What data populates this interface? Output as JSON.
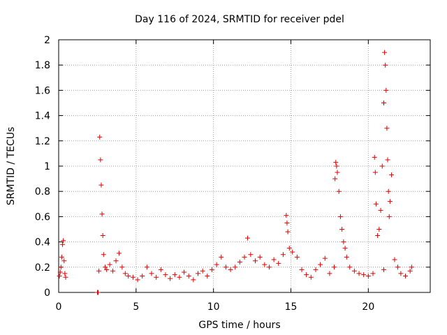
{
  "chart_data": {
    "type": "scatter",
    "title": "Day 116 of 2024, SRMTID for receiver pdel",
    "xlabel": "GPS time / hours",
    "ylabel": "SRMTID / TECUs",
    "xlim": [
      0,
      24
    ],
    "ylim": [
      0,
      2
    ],
    "xticks": [
      0,
      5,
      10,
      15,
      20
    ],
    "xtick_labels": [
      "0",
      "5",
      "10",
      "15",
      "20"
    ],
    "yticks": [
      0,
      0.2,
      0.4,
      0.6,
      0.8,
      1,
      1.2,
      1.4,
      1.6,
      1.8,
      2
    ],
    "ytick_labels": [
      "0",
      "0.2",
      "0.4",
      "0.6",
      "0.8",
      "1",
      "1.2",
      "1.4",
      "1.6",
      "1.8",
      "2"
    ],
    "grid": true,
    "marker": "plus",
    "color": "#e00000",
    "series": [
      {
        "name": "SRMTID",
        "points": [
          [
            0.05,
            0.13
          ],
          [
            0.1,
            0.16
          ],
          [
            0.15,
            0.2
          ],
          [
            0.2,
            0.28
          ],
          [
            0.25,
            0.38
          ],
          [
            0.3,
            0.41
          ],
          [
            0.35,
            0.25
          ],
          [
            0.4,
            0.15
          ],
          [
            0.45,
            0.12
          ],
          [
            2.5,
            0.0
          ],
          [
            2.55,
            0.0
          ],
          [
            2.6,
            0.17
          ],
          [
            2.65,
            1.23
          ],
          [
            2.7,
            1.05
          ],
          [
            2.75,
            0.85
          ],
          [
            2.8,
            0.62
          ],
          [
            2.85,
            0.45
          ],
          [
            2.9,
            0.3
          ],
          [
            3.0,
            0.2
          ],
          [
            3.1,
            0.18
          ],
          [
            3.3,
            0.22
          ],
          [
            3.5,
            0.17
          ],
          [
            3.7,
            0.25
          ],
          [
            3.9,
            0.31
          ],
          [
            4.1,
            0.2
          ],
          [
            4.3,
            0.15
          ],
          [
            4.5,
            0.13
          ],
          [
            4.8,
            0.12
          ],
          [
            5.1,
            0.1
          ],
          [
            5.4,
            0.13
          ],
          [
            5.7,
            0.2
          ],
          [
            6.0,
            0.15
          ],
          [
            6.3,
            0.12
          ],
          [
            6.6,
            0.18
          ],
          [
            6.9,
            0.14
          ],
          [
            7.2,
            0.11
          ],
          [
            7.5,
            0.14
          ],
          [
            7.8,
            0.12
          ],
          [
            8.1,
            0.16
          ],
          [
            8.4,
            0.13
          ],
          [
            8.7,
            0.1
          ],
          [
            9.0,
            0.15
          ],
          [
            9.3,
            0.17
          ],
          [
            9.6,
            0.13
          ],
          [
            9.9,
            0.18
          ],
          [
            10.2,
            0.22
          ],
          [
            10.5,
            0.28
          ],
          [
            10.8,
            0.2
          ],
          [
            11.1,
            0.18
          ],
          [
            11.4,
            0.2
          ],
          [
            11.7,
            0.24
          ],
          [
            12.0,
            0.28
          ],
          [
            12.2,
            0.43
          ],
          [
            12.4,
            0.3
          ],
          [
            12.7,
            0.25
          ],
          [
            13.0,
            0.28
          ],
          [
            13.3,
            0.22
          ],
          [
            13.6,
            0.2
          ],
          [
            13.9,
            0.26
          ],
          [
            14.2,
            0.23
          ],
          [
            14.5,
            0.3
          ],
          [
            14.7,
            0.61
          ],
          [
            14.75,
            0.55
          ],
          [
            14.8,
            0.48
          ],
          [
            14.9,
            0.35
          ],
          [
            15.1,
            0.32
          ],
          [
            15.4,
            0.28
          ],
          [
            15.7,
            0.18
          ],
          [
            16.0,
            0.14
          ],
          [
            16.3,
            0.12
          ],
          [
            16.6,
            0.18
          ],
          [
            16.9,
            0.22
          ],
          [
            17.2,
            0.27
          ],
          [
            17.5,
            0.15
          ],
          [
            17.8,
            0.2
          ],
          [
            17.85,
            0.9
          ],
          [
            17.9,
            1.03
          ],
          [
            17.95,
            1.0
          ],
          [
            18.0,
            0.95
          ],
          [
            18.1,
            0.8
          ],
          [
            18.2,
            0.6
          ],
          [
            18.3,
            0.5
          ],
          [
            18.4,
            0.4
          ],
          [
            18.5,
            0.35
          ],
          [
            18.6,
            0.28
          ],
          [
            18.8,
            0.2
          ],
          [
            19.1,
            0.17
          ],
          [
            19.4,
            0.15
          ],
          [
            19.7,
            0.14
          ],
          [
            20.0,
            0.13
          ],
          [
            20.3,
            0.15
          ],
          [
            20.4,
            1.07
          ],
          [
            20.45,
            0.95
          ],
          [
            20.5,
            0.7
          ],
          [
            20.6,
            0.45
          ],
          [
            20.7,
            0.5
          ],
          [
            20.8,
            0.65
          ],
          [
            20.9,
            1.0
          ],
          [
            21.0,
            1.5
          ],
          [
            21.05,
            1.9
          ],
          [
            21.1,
            1.8
          ],
          [
            21.15,
            1.6
          ],
          [
            21.2,
            1.3
          ],
          [
            21.25,
            1.05
          ],
          [
            21.3,
            0.8
          ],
          [
            21.35,
            0.6
          ],
          [
            21.4,
            0.72
          ],
          [
            21.5,
            0.93
          ],
          [
            21.0,
            0.18
          ],
          [
            21.7,
            0.26
          ],
          [
            21.9,
            0.2
          ],
          [
            22.1,
            0.15
          ],
          [
            22.4,
            0.13
          ],
          [
            22.7,
            0.17
          ],
          [
            22.8,
            0.2
          ]
        ]
      }
    ]
  }
}
